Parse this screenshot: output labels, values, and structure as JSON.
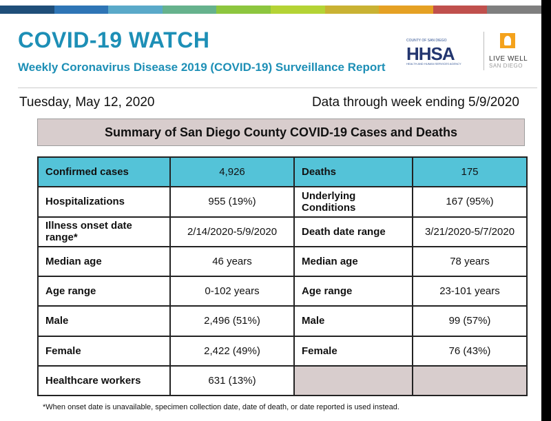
{
  "colors": {
    "title": "#1d8fb6",
    "header_row": "#54c3d8",
    "summary_bg": "#d8cdcd",
    "topbar": [
      "#1f4e79",
      "#2e75b6",
      "#5aa9c9",
      "#66b28d",
      "#8dc63f",
      "#b4d335",
      "#c9b233",
      "#e5a124",
      "#c0504d",
      "#7f7f7f"
    ]
  },
  "header": {
    "title": "COVID-19 WATCH",
    "subtitle": "Weekly Coronavirus Disease 2019 (COVID-19) Surveillance Report",
    "logo_hhsa": {
      "small": "COUNTY OF SAN DIEGO",
      "main": "HHSA",
      "sub": "HEALTH AND HUMAN SERVICES AGENCY",
      "icon": "shield-logo-icon"
    },
    "logo_livewell": {
      "line1": "LIVE WELL",
      "line2": "SAN DIEGO",
      "icon": "person-logo-icon"
    }
  },
  "report": {
    "date": "Tuesday, May 12, 2020",
    "through": "Data through week ending 5/9/2020",
    "summary_title": "Summary of San Diego County COVID-19 Cases and Deaths"
  },
  "table": {
    "rows": [
      {
        "c_label": "Confirmed cases",
        "c_value": "4,926",
        "d_label": "Deaths",
        "d_value": "175"
      },
      {
        "c_label": "Hospitalizations",
        "c_value": "955 (19%)",
        "d_label": "Underlying Conditions",
        "d_value": "167 (95%)"
      },
      {
        "c_label": "Illness onset date range*",
        "c_value": "2/14/2020-5/9/2020",
        "d_label": "Death date range",
        "d_value": "3/21/2020-5/7/2020"
      },
      {
        "c_label": "Median age",
        "c_value": "46 years",
        "d_label": "Median age",
        "d_value": "78 years"
      },
      {
        "c_label": "Age range",
        "c_value": "0-102 years",
        "d_label": "Age range",
        "d_value": "23-101 years"
      },
      {
        "c_label": "Male",
        "c_value": "2,496 (51%)",
        "d_label": "Male",
        "d_value": "99 (57%)"
      },
      {
        "c_label": "Female",
        "c_value": "2,422 (49%)",
        "d_label": "Female",
        "d_value": "76 (43%)"
      },
      {
        "c_label": "Healthcare workers",
        "c_value": "631 (13%)",
        "d_label": "",
        "d_value": ""
      }
    ]
  },
  "footnote": "*When onset date is unavailable, specimen collection date, date of death, or date reported is used instead."
}
